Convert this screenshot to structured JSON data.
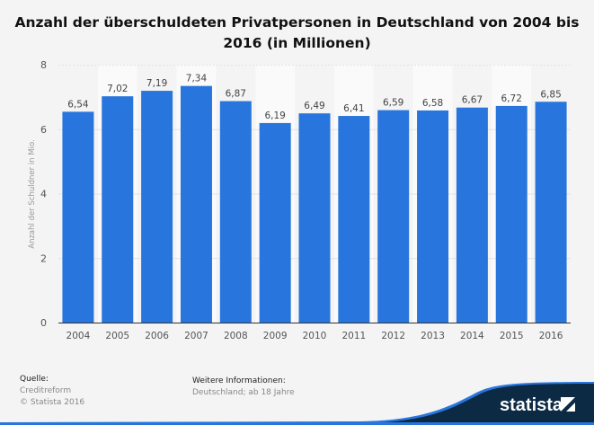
{
  "title": "Anzahl der überschuldeten Privatpersonen in Deutschland von 2004 bis 2016 (in Millionen)",
  "chart_data": {
    "type": "bar",
    "title": "Anzahl der überschuldeten Privatpersonen in Deutschland von 2004 bis 2016 (in Millionen)",
    "xlabel": "",
    "ylabel": "Anzahl der Schuldner in Mio.",
    "categories": [
      "2004",
      "2005",
      "2006",
      "2007",
      "2008",
      "2009",
      "2010",
      "2011",
      "2012",
      "2013",
      "2014",
      "2015",
      "2016"
    ],
    "values": [
      6.54,
      7.02,
      7.19,
      7.34,
      6.87,
      6.19,
      6.49,
      6.41,
      6.59,
      6.58,
      6.67,
      6.72,
      6.85
    ],
    "data_labels": [
      "6,54",
      "7,02",
      "7,19",
      "7,34",
      "6,87",
      "6,19",
      "6,49",
      "6,41",
      "6,59",
      "6,58",
      "6,67",
      "6,72",
      "6,85"
    ],
    "ylim": [
      0,
      8
    ],
    "yticks": [
      "0",
      "2",
      "4",
      "6",
      "8"
    ],
    "grid": true,
    "bar_color": "#2876dd"
  },
  "footer": {
    "source_heading": "Quelle:",
    "source": "Creditreform",
    "copyright": "© Statista 2016",
    "info_heading": "Weitere Informationen:",
    "info": "Deutschland; ab 18 Jahre",
    "brand": "statista"
  }
}
